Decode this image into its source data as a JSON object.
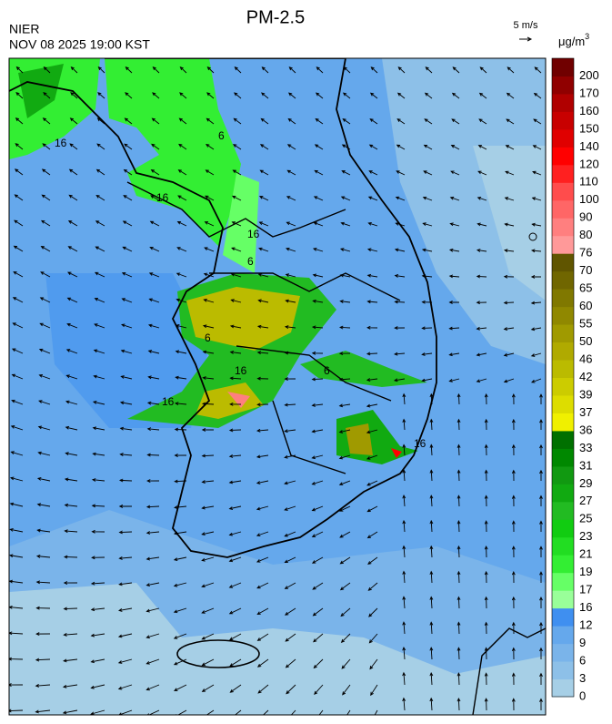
{
  "header": {
    "title": "PM-2.5",
    "agency": "NIER",
    "time": "NOV 08 2025 19:00 KST",
    "wind_scale": "5 m/s"
  },
  "colorbar": {
    "unit": {
      "base": "μg/m",
      "sup": "3"
    },
    "levels": [
      0,
      3,
      6,
      9,
      12,
      16,
      17,
      19,
      21,
      23,
      25,
      27,
      29,
      31,
      33,
      36,
      37,
      39,
      42,
      46,
      50,
      55,
      60,
      65,
      70,
      76,
      80,
      90,
      100,
      110,
      120,
      140,
      150,
      160,
      170,
      200
    ],
    "colors": [
      "#a6cfe6",
      "#8dc0e8",
      "#7ab4ea",
      "#65a8ec",
      "#3f8ff0",
      "#99ff99",
      "#66ff66",
      "#33ee33",
      "#22dd22",
      "#11cc11",
      "#22bb22",
      "#11aa11",
      "#119911",
      "#008800",
      "#007000",
      "#f0f000",
      "#dddd00",
      "#cccc00",
      "#bbbb00",
      "#b0aa00",
      "#a09a00",
      "#908800",
      "#807800",
      "#706600",
      "#605500",
      "#ff9999",
      "#ff7f7f",
      "#ff6666",
      "#ff4c4c",
      "#ff2020",
      "#ff0000",
      "#e00000",
      "#c80000",
      "#b00000",
      "#900000",
      "#700000"
    ]
  },
  "contour_labels": [
    "16",
    "16",
    "16",
    "6",
    "16",
    "6",
    "16",
    "6",
    "16",
    "6"
  ]
}
